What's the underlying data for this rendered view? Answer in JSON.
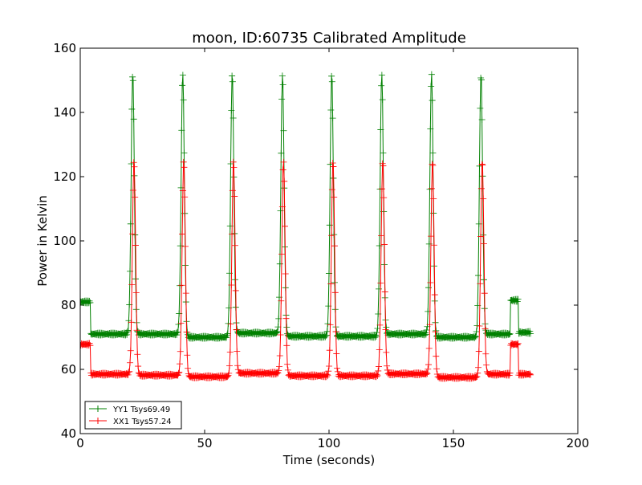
{
  "chart_data": {
    "type": "line",
    "title": "moon, ID:60735 Calibrated Amplitude",
    "xlabel": "Time (seconds)",
    "ylabel": "Power in Kelvin",
    "xlim": [
      0,
      200
    ],
    "ylim": [
      40,
      160
    ],
    "xticks": [
      "0",
      "50",
      "100",
      "150",
      "200"
    ],
    "yticks": [
      "40",
      "60",
      "80",
      "100",
      "120",
      "140",
      "160"
    ],
    "grid": false,
    "legend_position": "lower-left",
    "x_range": [
      0,
      181
    ],
    "sample_interval_s": 0.25,
    "series": [
      {
        "name": "YY1 Tsys69.49",
        "color": "#008000",
        "baseline_segments": [
          [
            0,
            4,
            81
          ],
          [
            4,
            20,
            71
          ],
          [
            22.5,
            40,
            71
          ],
          [
            42.5,
            60,
            70
          ],
          [
            62.5,
            80,
            71.3
          ],
          [
            82.5,
            100,
            70.3
          ],
          [
            102.5,
            120,
            70.3
          ],
          [
            122.5,
            140,
            71
          ],
          [
            142.5,
            160,
            70
          ],
          [
            162.5,
            172.8,
            71
          ],
          [
            172.8,
            176.2,
            81.5
          ],
          [
            176.2,
            181,
            71.5
          ]
        ],
        "peak_times": [
          21.1,
          41.2,
          61.1,
          81.3,
          101.1,
          121.2,
          141.2,
          161.1
        ],
        "peak_values": [
          152,
          152,
          152,
          152,
          152,
          152,
          152,
          152
        ]
      },
      {
        "name": "XX1 Tsys57.24",
        "color": "#ff0000",
        "baseline_segments": [
          [
            0,
            4,
            67.8
          ],
          [
            4,
            20,
            58.5
          ],
          [
            22.5,
            40,
            58.2
          ],
          [
            42.5,
            60,
            57.7
          ],
          [
            62.5,
            80,
            58.8
          ],
          [
            82.5,
            100,
            58
          ],
          [
            102.5,
            120,
            58
          ],
          [
            122.5,
            140,
            58.6
          ],
          [
            142.5,
            160,
            57.5
          ],
          [
            162.5,
            172.8,
            58.5
          ],
          [
            172.8,
            176.2,
            67.8
          ],
          [
            176.2,
            181,
            58.5
          ]
        ],
        "peak_times": [
          21.6,
          41.6,
          61.6,
          81.7,
          101.6,
          121.6,
          141.6,
          161.6
        ],
        "peak_values": [
          125,
          125,
          125,
          125,
          125,
          125,
          125,
          125
        ]
      }
    ]
  }
}
